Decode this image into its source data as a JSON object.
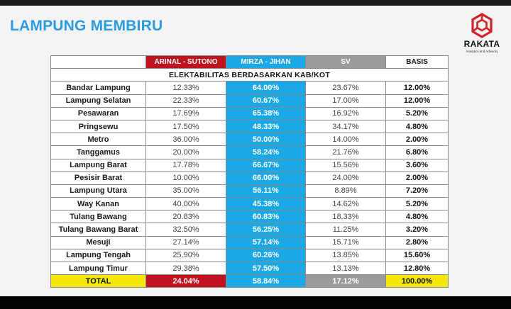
{
  "page": {
    "title": "LAMPUNG MEMBIRU"
  },
  "logo": {
    "name": "RAKATA",
    "tagline": "Analytics and Advisory",
    "icon": "rakata-hexagon-logo"
  },
  "colors": {
    "arinal": "#c0121e",
    "mirza": "#1ba8e6",
    "sv": "#9b9b9b",
    "total": "#f5e60a",
    "title": "#2b9be0"
  },
  "chart_data": {
    "type": "table",
    "subtitle": "ELEKTABILITAS BERDASARKAN KAB/KOT",
    "columns": [
      "",
      "ARINAL - SUTONO",
      "MIRZA - JIHAN",
      "SV",
      "BASIS"
    ],
    "rows": [
      [
        "Bandar Lampung",
        "12.33%",
        "64.00%",
        "23.67%",
        "12.00%"
      ],
      [
        "Lampung Selatan",
        "22.33%",
        "60.67%",
        "17.00%",
        "12.00%"
      ],
      [
        "Pesawaran",
        "17.69%",
        "65.38%",
        "16.92%",
        "5.20%"
      ],
      [
        "Pringsewu",
        "17.50%",
        "48.33%",
        "34.17%",
        "4.80%"
      ],
      [
        "Metro",
        "36.00%",
        "50.00%",
        "14.00%",
        "2.00%"
      ],
      [
        "Tanggamus",
        "20.00%",
        "58.24%",
        "21.76%",
        "6.80%"
      ],
      [
        "Lampung Barat",
        "17.78%",
        "66.67%",
        "15.56%",
        "3.60%"
      ],
      [
        "Pesisir Barat",
        "10.00%",
        "66.00%",
        "24.00%",
        "2.00%"
      ],
      [
        "Lampung Utara",
        "35.00%",
        "56.11%",
        "8.89%",
        "7.20%"
      ],
      [
        "Way Kanan",
        "40.00%",
        "45.38%",
        "14.62%",
        "5.20%"
      ],
      [
        "Tulang Bawang",
        "20.83%",
        "60.83%",
        "18.33%",
        "4.80%"
      ],
      [
        "Tulang Bawang Barat",
        "32.50%",
        "56.25%",
        "11.25%",
        "3.20%"
      ],
      [
        "Mesuji",
        "27.14%",
        "57.14%",
        "15.71%",
        "2.80%"
      ],
      [
        "Lampung Tengah",
        "25.90%",
        "60.26%",
        "13.85%",
        "15.60%"
      ],
      [
        "Lampung Timur",
        "29.38%",
        "57.50%",
        "13.13%",
        "12.80%"
      ]
    ],
    "total": [
      "TOTAL",
      "24.04%",
      "58.84%",
      "17.12%",
      "100.00%"
    ]
  }
}
